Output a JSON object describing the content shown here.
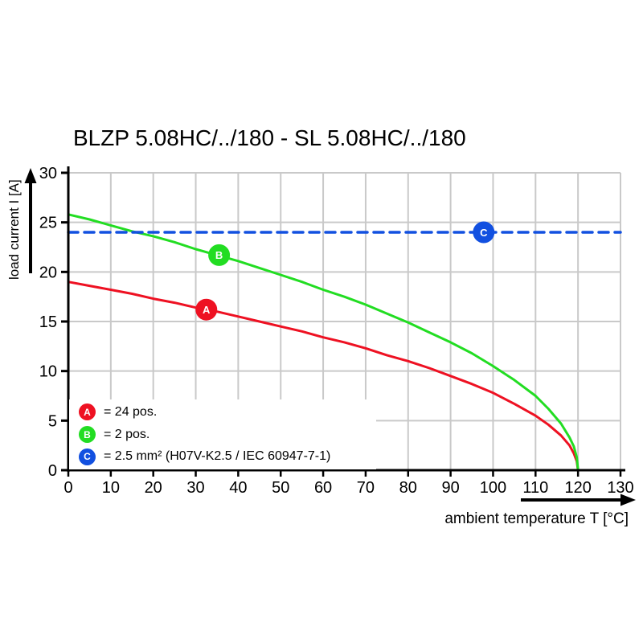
{
  "title": "BLZP 5.08HC/../180 - SL 5.08HC/../180",
  "colors": {
    "series_a_red": "#ee1122",
    "series_b_green": "#22dd22",
    "series_c_blue": "#1250e0",
    "grid": "#c9c9c9",
    "axis": "#000000",
    "background": "#ffffff"
  },
  "chart_data": {
    "type": "line",
    "title": "BLZP 5.08HC/../180 - SL 5.08HC/../180",
    "xlabel": "ambient temperature T [°C]",
    "ylabel": "load current I [A]",
    "xlim": [
      0,
      130
    ],
    "ylim": [
      0,
      30
    ],
    "x_ticks": [
      0,
      10,
      20,
      30,
      40,
      50,
      60,
      70,
      80,
      90,
      100,
      110,
      120,
      130
    ],
    "y_ticks": [
      0,
      5,
      10,
      15,
      20,
      25,
      30
    ],
    "grid": true,
    "series": [
      {
        "name": "A",
        "label": "= 24 pos.",
        "color": "#ee1122",
        "style": "solid",
        "points": [
          [
            0,
            19.0
          ],
          [
            5,
            18.6
          ],
          [
            10,
            18.2
          ],
          [
            15,
            17.8
          ],
          [
            20,
            17.3
          ],
          [
            25,
            16.9
          ],
          [
            30,
            16.4
          ],
          [
            35,
            16.0
          ],
          [
            40,
            15.5
          ],
          [
            45,
            15.0
          ],
          [
            50,
            14.5
          ],
          [
            55,
            14.0
          ],
          [
            60,
            13.4
          ],
          [
            65,
            12.9
          ],
          [
            70,
            12.3
          ],
          [
            75,
            11.6
          ],
          [
            80,
            11.0
          ],
          [
            85,
            10.3
          ],
          [
            90,
            9.5
          ],
          [
            95,
            8.7
          ],
          [
            100,
            7.8
          ],
          [
            105,
            6.7
          ],
          [
            110,
            5.5
          ],
          [
            113,
            4.6
          ],
          [
            116,
            3.5
          ],
          [
            118,
            2.5
          ],
          [
            119,
            1.7
          ],
          [
            119.7,
            0.9
          ],
          [
            120,
            0
          ]
        ]
      },
      {
        "name": "B",
        "label": "= 2 pos.",
        "color": "#22dd22",
        "style": "solid",
        "points": [
          [
            0,
            25.8
          ],
          [
            5,
            25.3
          ],
          [
            10,
            24.7
          ],
          [
            15,
            24.1
          ],
          [
            20,
            23.6
          ],
          [
            25,
            23.0
          ],
          [
            30,
            22.3
          ],
          [
            35,
            21.7
          ],
          [
            40,
            21.1
          ],
          [
            45,
            20.4
          ],
          [
            50,
            19.7
          ],
          [
            55,
            19.0
          ],
          [
            60,
            18.2
          ],
          [
            65,
            17.5
          ],
          [
            70,
            16.7
          ],
          [
            75,
            15.8
          ],
          [
            80,
            14.9
          ],
          [
            85,
            13.9
          ],
          [
            90,
            12.9
          ],
          [
            95,
            11.8
          ],
          [
            100,
            10.5
          ],
          [
            105,
            9.1
          ],
          [
            110,
            7.5
          ],
          [
            113,
            6.2
          ],
          [
            116,
            4.7
          ],
          [
            118,
            3.3
          ],
          [
            119,
            2.4
          ],
          [
            119.7,
            1.3
          ],
          [
            120,
            0
          ]
        ]
      },
      {
        "name": "C",
        "label": "= 2.5 mm² (H07V-K2.5 / IEC 60947-7-1)",
        "color": "#1250e0",
        "style": "dashed",
        "points": [
          [
            0,
            24
          ],
          [
            130,
            24
          ]
        ]
      }
    ],
    "markers": [
      {
        "letter": "A",
        "x": 32.5,
        "y": 16.2,
        "color": "#ee1122"
      },
      {
        "letter": "B",
        "x": 35.5,
        "y": 21.7,
        "color": "#22dd22"
      },
      {
        "letter": "C",
        "x": 97.8,
        "y": 24.0,
        "color": "#1250e0"
      }
    ],
    "legend": {
      "position": "bottom-left",
      "items": [
        {
          "letter": "A",
          "label": "= 24 pos."
        },
        {
          "letter": "B",
          "label": "= 2 pos."
        },
        {
          "letter": "C",
          "label": "= 2.5 mm² (H07V-K2.5 / IEC 60947-7-1)"
        }
      ]
    }
  }
}
